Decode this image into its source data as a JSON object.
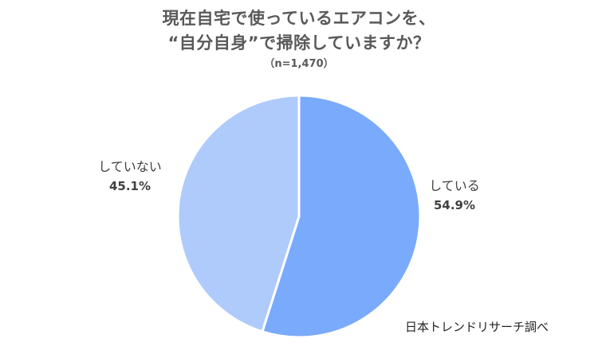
{
  "chart_data": {
    "type": "pie",
    "title_lines": [
      "現在自宅で使っているエアコンを、",
      "“自分自身”で掃除していますか？"
    ],
    "subtitle": "（n=1,470）",
    "slices": [
      {
        "label": "している",
        "value": 54.9,
        "value_label": "54.9%",
        "color": "#7aaafb"
      },
      {
        "label": "していない",
        "value": 45.1,
        "value_label": "45.1%",
        "color": "#aecbfb"
      }
    ],
    "start_angle": "12 o'clock",
    "direction": "clockwise"
  },
  "source_note": "日本トレンドリサーチ調べ"
}
